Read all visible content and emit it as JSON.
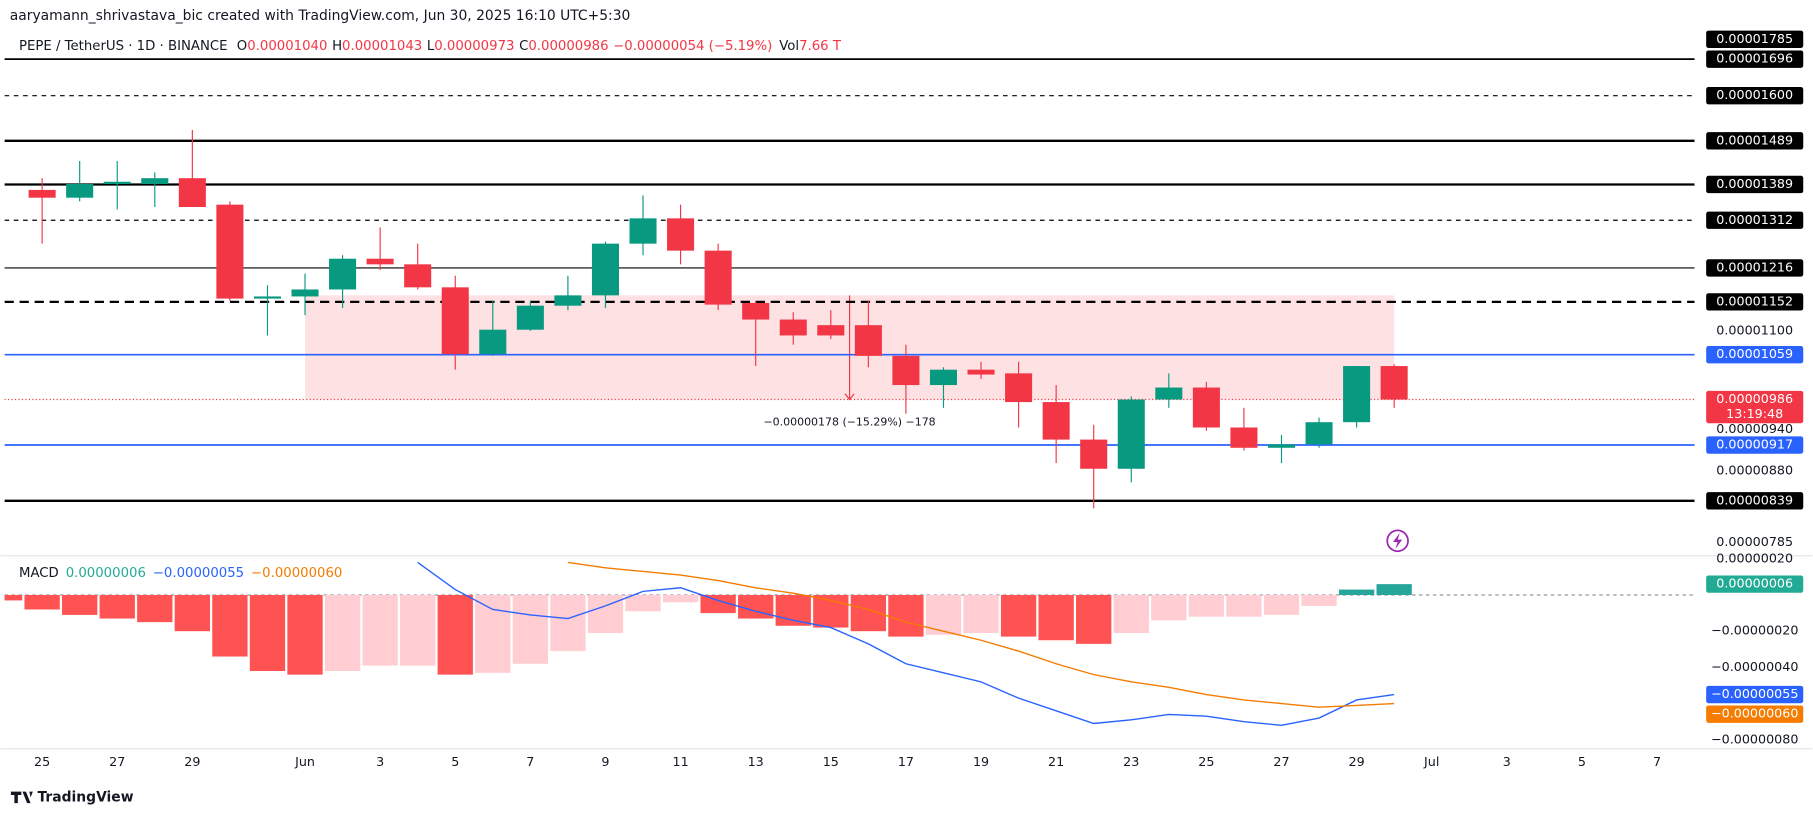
{
  "header": {
    "credit": "aaryamann_shrivastava_bic created with TradingView.com, Jun 30, 2025 16:10 UTC+5:30"
  },
  "chart_data": [
    {
      "type": "candlestick",
      "legend": {
        "symbol": "PEPE / TetherUS · 1D · BINANCE",
        "items": [
          {
            "key": "O",
            "value": "0.00001040"
          },
          {
            "key": "H",
            "value": "0.00001043"
          },
          {
            "key": "L",
            "value": "0.00000973"
          },
          {
            "key": "C",
            "value": "0.00000986"
          }
        ],
        "change": "−0.00000054 (−5.19%)",
        "volume_key": "Vol",
        "volume": "7.66 T"
      },
      "x": [
        "2025-05-25",
        "2025-05-26",
        "2025-05-27",
        "2025-05-28",
        "2025-05-29",
        "2025-05-30",
        "2025-05-31",
        "2025-06-01",
        "2025-06-02",
        "2025-06-03",
        "2025-06-04",
        "2025-06-05",
        "2025-06-06",
        "2025-06-07",
        "2025-06-08",
        "2025-06-09",
        "2025-06-10",
        "2025-06-11",
        "2025-06-12",
        "2025-06-13",
        "2025-06-14",
        "2025-06-15",
        "2025-06-16",
        "2025-06-17",
        "2025-06-18",
        "2025-06-19",
        "2025-06-20",
        "2025-06-21",
        "2025-06-22",
        "2025-06-23",
        "2025-06-24",
        "2025-06-25",
        "2025-06-26",
        "2025-06-27",
        "2025-06-28",
        "2025-06-29",
        "2025-06-30"
      ],
      "open": [
        1.377e-05,
        1.36e-05,
        1.39e-05,
        1.39e-05,
        1.403e-05,
        1.345e-05,
        1.158e-05,
        1.162e-05,
        1.175e-05,
        1.234e-05,
        1.223e-05,
        1.179e-05,
        1.06e-05,
        1.102e-05,
        1.145e-05,
        1.164e-05,
        1.264e-05,
        1.316e-05,
        1.25e-05,
        1.15e-05,
        1.12e-05,
        1.11e-05,
        1.11e-05,
        1.057e-05,
        1.009e-05,
        1.034e-05,
        1.028e-05,
        9.82e-06,
        9.25e-06,
        8.83e-06,
        9.86e-06,
        1.005e-05,
        9.43e-06,
        9.13e-06,
        9.18e-06,
        9.51e-06,
        1.04e-05
      ],
      "high": [
        1.403e-05,
        1.442e-05,
        1.442e-05,
        1.416e-05,
        1.515e-05,
        1.352e-05,
        1.183e-05,
        1.205e-05,
        1.241e-05,
        1.297e-05,
        1.264e-05,
        1.201e-05,
        1.154e-05,
        1.154e-05,
        1.201e-05,
        1.268e-05,
        1.365e-05,
        1.345e-05,
        1.264e-05,
        1.154e-05,
        1.133e-05,
        1.137e-05,
        1.154e-05,
        1.076e-05,
        1.038e-05,
        1.047e-05,
        1.047e-05,
        1.009e-05,
        9.47e-06,
        9.91e-06,
        1.028e-05,
        1.014e-05,
        9.73e-06,
        9.32e-06,
        9.58e-06,
        1.04e-05,
        1.043e-05
      ],
      "low": [
        1.264e-05,
        1.352e-05,
        1.335e-05,
        1.34e-05,
        1.34e-05,
        1.154e-05,
        1.092e-05,
        1.128e-05,
        1.141e-05,
        1.212e-05,
        1.175e-05,
        1.034e-05,
        1.057e-05,
        1.1e-05,
        1.137e-05,
        1.141e-05,
        1.241e-05,
        1.223e-05,
        1.137e-05,
        1.04e-05,
        1.076e-05,
        1.086e-05,
        1.038e-05,
        9.64e-06,
        9.73e-06,
        1.019e-05,
        9.43e-06,
        8.91e-06,
        8.29e-06,
        8.64e-06,
        9.73e-06,
        9.38e-06,
        9.09e-06,
        8.91e-06,
        9.13e-06,
        9.43e-06,
        9.73e-06
      ],
      "close": [
        1.36e-05,
        1.39e-05,
        1.395e-05,
        1.403e-05,
        1.34e-05,
        1.158e-05,
        1.162e-05,
        1.175e-05,
        1.234e-05,
        1.223e-05,
        1.179e-05,
        1.06e-05,
        1.102e-05,
        1.145e-05,
        1.164e-05,
        1.264e-05,
        1.316e-05,
        1.25e-05,
        1.147e-05,
        1.12e-05,
        1.092e-05,
        1.092e-05,
        1.057e-05,
        1.009e-05,
        1.034e-05,
        1.026e-05,
        9.82e-06,
        9.25e-06,
        8.83e-06,
        9.86e-06,
        1.005e-05,
        9.43e-06,
        9.13e-06,
        9.18e-06,
        9.51e-06,
        1.04e-05,
        9.86e-06
      ],
      "up_color": "#089981",
      "down_color": "#f23645",
      "xlim": [
        "2025-05-24",
        "2025-07-08"
      ],
      "ylim": [
        7.7e-06,
        1.77e-05
      ],
      "log_scale": true,
      "grid": false,
      "yticks": [
        {
          "value": 1.1e-05,
          "label": "0.00001100"
        },
        {
          "value": 9.4e-06,
          "label": "0.00000940"
        },
        {
          "value": 8.8e-06,
          "label": "0.00000880"
        },
        {
          "value": 7.85e-06,
          "label": "0.00000785"
        }
      ],
      "levels": [
        {
          "value": 1.785e-05,
          "label": "0.00001785",
          "color": "#000000",
          "style": "solid",
          "width": 1.5
        },
        {
          "value": 1.696e-05,
          "label": "0.00001696",
          "color": "#000000",
          "style": "solid",
          "width": 1.5
        },
        {
          "value": 1.6e-05,
          "label": "0.00001600",
          "color": "#000000",
          "style": "dashed",
          "width": 1
        },
        {
          "value": 1.489e-05,
          "label": "0.00001489",
          "color": "#000000",
          "style": "solid",
          "width": 2
        },
        {
          "value": 1.389e-05,
          "label": "0.00001389",
          "color": "#000000",
          "style": "solid",
          "width": 2
        },
        {
          "value": 1.312e-05,
          "label": "0.00001312",
          "color": "#000000",
          "style": "dashed",
          "width": 1
        },
        {
          "value": 1.216e-05,
          "label": "0.00001216",
          "color": "#000000",
          "style": "solid",
          "width": 1
        },
        {
          "value": 1.152e-05,
          "label": "0.00001152",
          "color": "#000000",
          "style": "dashed",
          "width": 2
        },
        {
          "value": 1.059e-05,
          "label": "0.00001059",
          "color": "#2962ff",
          "style": "solid",
          "width": 1.5
        },
        {
          "value": 9.17e-06,
          "label": "0.00000917",
          "color": "#2962ff",
          "style": "solid",
          "width": 1.5
        },
        {
          "value": 8.39e-06,
          "label": "0.00000839",
          "color": "#000000",
          "style": "solid",
          "width": 2
        }
      ],
      "current_price": {
        "value": 9.86e-06,
        "label": "0.00000986",
        "countdown": "13:19:48",
        "color": "#f23645"
      },
      "zone": {
        "start": "2025-06-01",
        "end": "2025-06-30",
        "top": 1.164e-05,
        "bottom": 9.86e-06,
        "color": "#f23645",
        "label": "−0.00000178 (−15.29%) −178"
      }
    },
    {
      "type": "macd",
      "legend_title": "MACD",
      "x": [
        "2025-05-24",
        "2025-05-25",
        "2025-05-26",
        "2025-05-27",
        "2025-05-28",
        "2025-05-29",
        "2025-05-30",
        "2025-05-31",
        "2025-06-01",
        "2025-06-02",
        "2025-06-03",
        "2025-06-04",
        "2025-06-05",
        "2025-06-06",
        "2025-06-07",
        "2025-06-08",
        "2025-06-09",
        "2025-06-10",
        "2025-06-11",
        "2025-06-12",
        "2025-06-13",
        "2025-06-14",
        "2025-06-15",
        "2025-06-16",
        "2025-06-17",
        "2025-06-18",
        "2025-06-19",
        "2025-06-20",
        "2025-06-21",
        "2025-06-22",
        "2025-06-23",
        "2025-06-24",
        "2025-06-25",
        "2025-06-26",
        "2025-06-27",
        "2025-06-28",
        "2025-06-29",
        "2025-06-30"
      ],
      "xlim": [
        "2025-05-24",
        "2025-07-08"
      ],
      "ylim": [
        -8.5e-07,
        2.1e-07
      ],
      "yticks": [
        {
          "value": 2e-07,
          "label": "0.00000020"
        },
        {
          "value": -2e-07,
          "label": "−0.00000020"
        },
        {
          "value": -4e-07,
          "label": "−0.00000040"
        },
        {
          "value": -8e-07,
          "label": "−0.00000080"
        }
      ],
      "xticks": [
        {
          "value": "2025-05-25",
          "label": "25"
        },
        {
          "value": "2025-05-27",
          "label": "27"
        },
        {
          "value": "2025-05-29",
          "label": "29"
        },
        {
          "value": "2025-06-01",
          "label": "Jun"
        },
        {
          "value": "2025-06-03",
          "label": "3"
        },
        {
          "value": "2025-06-05",
          "label": "5"
        },
        {
          "value": "2025-06-07",
          "label": "7"
        },
        {
          "value": "2025-06-09",
          "label": "9"
        },
        {
          "value": "2025-06-11",
          "label": "11"
        },
        {
          "value": "2025-06-13",
          "label": "13"
        },
        {
          "value": "2025-06-15",
          "label": "15"
        },
        {
          "value": "2025-06-17",
          "label": "17"
        },
        {
          "value": "2025-06-19",
          "label": "19"
        },
        {
          "value": "2025-06-21",
          "label": "21"
        },
        {
          "value": "2025-06-23",
          "label": "23"
        },
        {
          "value": "2025-06-25",
          "label": "25"
        },
        {
          "value": "2025-06-27",
          "label": "27"
        },
        {
          "value": "2025-06-29",
          "label": "29"
        },
        {
          "value": "2025-07-01",
          "label": "Jul"
        },
        {
          "value": "2025-07-03",
          "label": "3"
        },
        {
          "value": "2025-07-05",
          "label": "5"
        },
        {
          "value": "2025-07-07",
          "label": "7"
        }
      ],
      "series": [
        {
          "kind": "histogram",
          "values": [
            -3e-08,
            -8e-08,
            -1.1e-07,
            -1.3e-07,
            -1.5e-07,
            -2e-07,
            -3.4e-07,
            -4.2e-07,
            -4.4e-07,
            -4.2e-07,
            -3.9e-07,
            -3.9e-07,
            -4.4e-07,
            -4.3e-07,
            -3.8e-07,
            -3.1e-07,
            -2.1e-07,
            -9e-08,
            -4e-08,
            -1e-07,
            -1.3e-07,
            -1.7e-07,
            -1.8e-07,
            -2e-07,
            -2.3e-07,
            -2.2e-07,
            -2.1e-07,
            -2.3e-07,
            -2.5e-07,
            -2.7e-07,
            -2.1e-07,
            -1.4e-07,
            -1.2e-07,
            -1.2e-07,
            -1.1e-07,
            -6e-08,
            3e-08,
            6e-08
          ],
          "colors": {
            "down_falling": "#ff5252",
            "down_rising": "#ffcdd2",
            "up_rising": "#26a69a",
            "up_falling": "#b2dfdb"
          },
          "color": "#22ab94",
          "last_label": "0.00000006"
        },
        {
          "kind": "line",
          "color": "#2962ff",
          "values": [
            null,
            null,
            null,
            null,
            null,
            null,
            null,
            null,
            null,
            null,
            null,
            1.8e-07,
            3e-08,
            -8e-08,
            -1.1e-07,
            -1.3e-07,
            -6e-08,
            2e-08,
            4e-08,
            -3e-08,
            -9e-08,
            -1.4e-07,
            -1.8e-07,
            -2.7e-07,
            -3.8e-07,
            -4.3e-07,
            -4.8e-07,
            -5.7e-07,
            -6.4e-07,
            -7.1e-07,
            -6.9e-07,
            -6.6e-07,
            -6.7e-07,
            -7e-07,
            -7.2e-07,
            -6.8e-07,
            -5.8e-07,
            -5.5e-07
          ],
          "last_label": "−0.00000055"
        },
        {
          "kind": "line",
          "color": "#f57c00",
          "values": [
            null,
            null,
            null,
            null,
            null,
            null,
            null,
            null,
            null,
            null,
            null,
            null,
            null,
            null,
            null,
            1.8e-07,
            1.5e-07,
            1.3e-07,
            1.1e-07,
            8e-08,
            4e-08,
            1e-08,
            -3e-08,
            -8e-08,
            -1.5e-07,
            -2e-07,
            -2.5e-07,
            -3.1e-07,
            -3.8e-07,
            -4.4e-07,
            -4.8e-07,
            -5.1e-07,
            -5.5e-07,
            -5.8e-07,
            -6e-07,
            -6.2e-07,
            -6.1e-07,
            -6e-07
          ],
          "last_label": "−0.00000060"
        }
      ]
    }
  ],
  "footer": {
    "brand": "TradingView"
  }
}
